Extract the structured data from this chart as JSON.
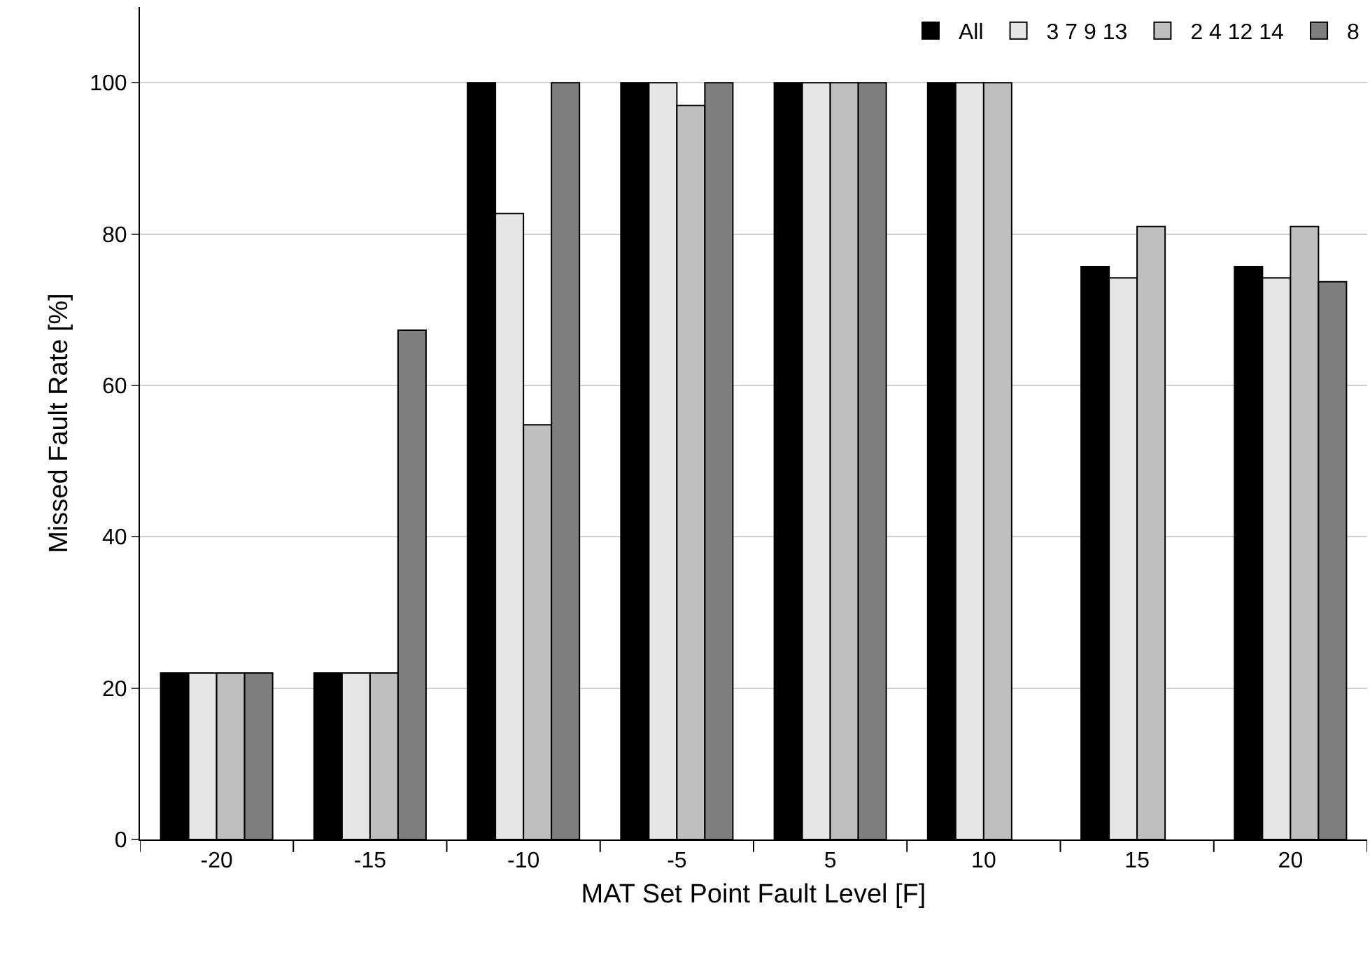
{
  "chart_data": {
    "type": "bar",
    "xlabel": "MAT Set Point Fault Level [F]",
    "ylabel": "Missed Fault Rate [%]",
    "categories": [
      "-20",
      "-15",
      "-10",
      "-5",
      "5",
      "10",
      "15",
      "20"
    ],
    "series": [
      {
        "name": "All",
        "color": "#000000",
        "values": [
          22,
          22,
          100,
          100,
          100,
          100,
          75.7,
          75.7
        ]
      },
      {
        "name": "3 7 9 13",
        "color": "#e6e6e6",
        "values": [
          22,
          22,
          82.7,
          100,
          100,
          100,
          74.2,
          74.2
        ]
      },
      {
        "name": "2 4 12 14",
        "color": "#bfbfbf",
        "values": [
          22,
          22,
          54.8,
          97,
          100,
          100,
          81,
          81
        ]
      },
      {
        "name": "8",
        "color": "#7f7f7f",
        "values": [
          22,
          67.3,
          100,
          100,
          100,
          null,
          null,
          73.7
        ]
      }
    ],
    "ylim": [
      0,
      110
    ],
    "yticks": [
      0,
      20,
      40,
      60,
      80,
      100
    ],
    "grid": "y",
    "legend": "top right"
  }
}
